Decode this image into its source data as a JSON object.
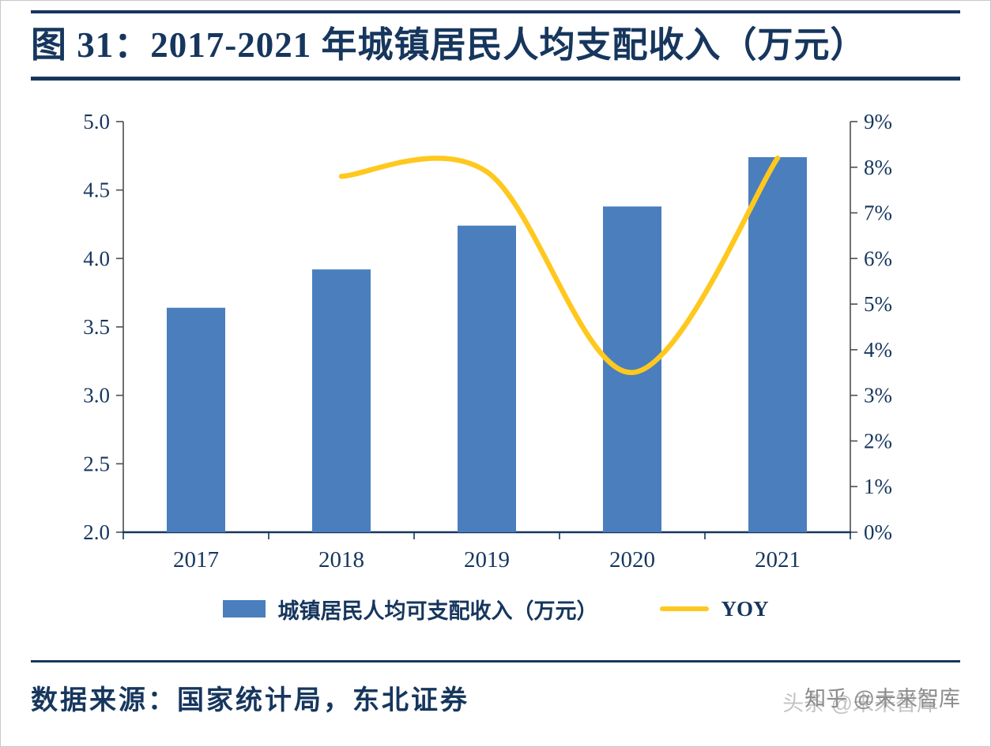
{
  "chart_data": {
    "type": "bar+line-combo",
    "title": "图 31：2017-2021 年城镇居民人均支配收入（万元）",
    "categories": [
      "2017",
      "2018",
      "2019",
      "2020",
      "2021"
    ],
    "bar_series": {
      "name": "城镇居民人均可支配收入（万元）",
      "axis": "left",
      "color": "#4A7EBD",
      "values": [
        3.64,
        3.92,
        4.24,
        4.38,
        4.74
      ]
    },
    "line_series": {
      "name": "YOY",
      "axis": "right",
      "color": "#FFC81E",
      "values": [
        null,
        7.8,
        7.9,
        3.5,
        8.2
      ],
      "smooth": true
    },
    "left_axis": {
      "min": 2.0,
      "max": 5.0,
      "tick_labels": [
        "5.0",
        "4.5",
        "4.0",
        "3.5",
        "3.0",
        "2.5",
        "2.0"
      ]
    },
    "right_axis": {
      "min": 0,
      "max": 9,
      "tick_labels": [
        "9%",
        "8%",
        "7%",
        "6%",
        "5%",
        "4%",
        "3%",
        "2%",
        "1%",
        "0%"
      ]
    },
    "grid": false,
    "legend_position": "bottom"
  },
  "footer": {
    "source": "数据来源：国家统计局，东北证券",
    "watermark_front": "知乎 @未来智库",
    "watermark_back": "头条 @未来智库"
  },
  "colors": {
    "navy": "#16365D",
    "axis_gray": "#4d4d4d",
    "bar": "#4A7EBD",
    "line": "#FFC81E"
  }
}
